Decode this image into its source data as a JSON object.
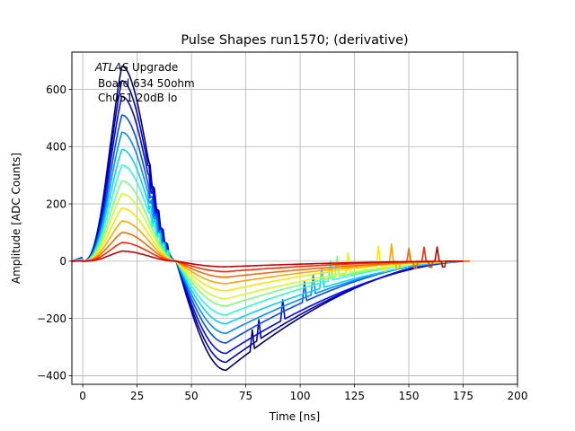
{
  "chart_data": {
    "type": "line",
    "title": "Pulse Shapes run1570; (derivative)",
    "xlabel": "Time [ns]",
    "ylabel": "Amplitude [ADC Counts]",
    "xlim": [
      -5,
      200
    ],
    "ylim": [
      -430,
      730
    ],
    "xticks": [
      0,
      25,
      50,
      75,
      100,
      125,
      150,
      175,
      200
    ],
    "yticks": [
      -400,
      -200,
      0,
      200,
      400,
      600
    ],
    "grid": true,
    "annotation": {
      "italic": "ATLAS",
      "rest": " Upgrade",
      "line2": "Board 634 50ohm",
      "line3": "Ch051 20dB lo"
    },
    "pulse": {
      "peak_time": 18,
      "zero_cross": 43,
      "trough_time": 66,
      "end_time": 172,
      "trough_ratio": -0.56
    },
    "series": [
      {
        "peak": 680,
        "color": "#00007f"
      },
      {
        "peak": 630,
        "color": "#0000c8"
      },
      {
        "peak": 575,
        "color": "#0008ff"
      },
      {
        "peak": 510,
        "color": "#004cff"
      },
      {
        "peak": 450,
        "color": "#0090ff"
      },
      {
        "peak": 390,
        "color": "#00d4ff"
      },
      {
        "peak": 335,
        "color": "#29ffce"
      },
      {
        "peak": 280,
        "color": "#7dff7a"
      },
      {
        "peak": 235,
        "color": "#ceff29"
      },
      {
        "peak": 185,
        "color": "#ffe600"
      },
      {
        "peak": 140,
        "color": "#ffa700"
      },
      {
        "peak": 100,
        "color": "#ff6800"
      },
      {
        "peak": 65,
        "color": "#ff2900"
      },
      {
        "peak": 35,
        "color": "#c80000"
      }
    ]
  }
}
